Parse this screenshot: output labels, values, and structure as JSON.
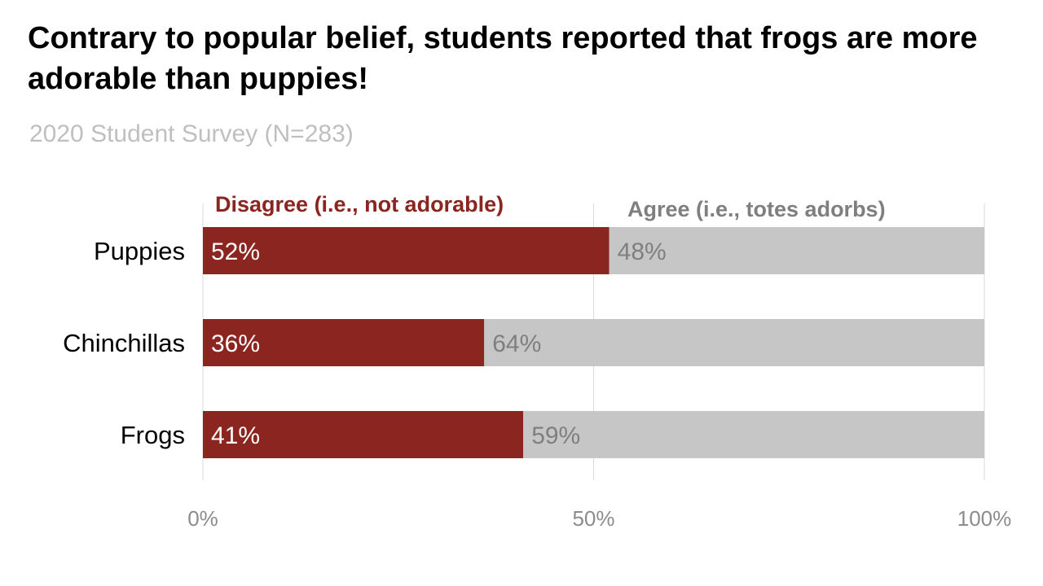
{
  "chart_data": {
    "type": "bar",
    "orientation": "horizontal",
    "stacked": true,
    "title": "Contrary to popular belief, students reported that frogs are more adorable than puppies!",
    "subtitle": "2020 Student Survey (N=283)",
    "categories": [
      "Puppies",
      "Chinchillas",
      "Frogs"
    ],
    "series": [
      {
        "name": "Disagree (i.e., not adorable)",
        "values": [
          52,
          36,
          41
        ],
        "labels": [
          "52%",
          "36%",
          "41%"
        ],
        "color": "#8b2520",
        "label_color": "#ffffff"
      },
      {
        "name": "Agree (i.e., totes adorbs)",
        "values": [
          48,
          64,
          59
        ],
        "labels": [
          "48%",
          "64%",
          "59%"
        ],
        "color": "#c6c6c6",
        "label_color": "#7f7f7f"
      }
    ],
    "xlim": [
      0,
      100
    ],
    "xticks": [
      0,
      50,
      100
    ],
    "xtick_labels": [
      "0%",
      "50%",
      "100%"
    ],
    "xlabel": "",
    "ylabel": "",
    "grid": true,
    "legend": "top, inline above bars"
  },
  "colors": {
    "disagree": "#8b2520",
    "agree": "#c6c6c6",
    "agree_label": "#7f7f7f",
    "subtitle": "#bfbfbf",
    "gridline": "#d9d9d9",
    "tick_label": "#8c8c8c"
  }
}
